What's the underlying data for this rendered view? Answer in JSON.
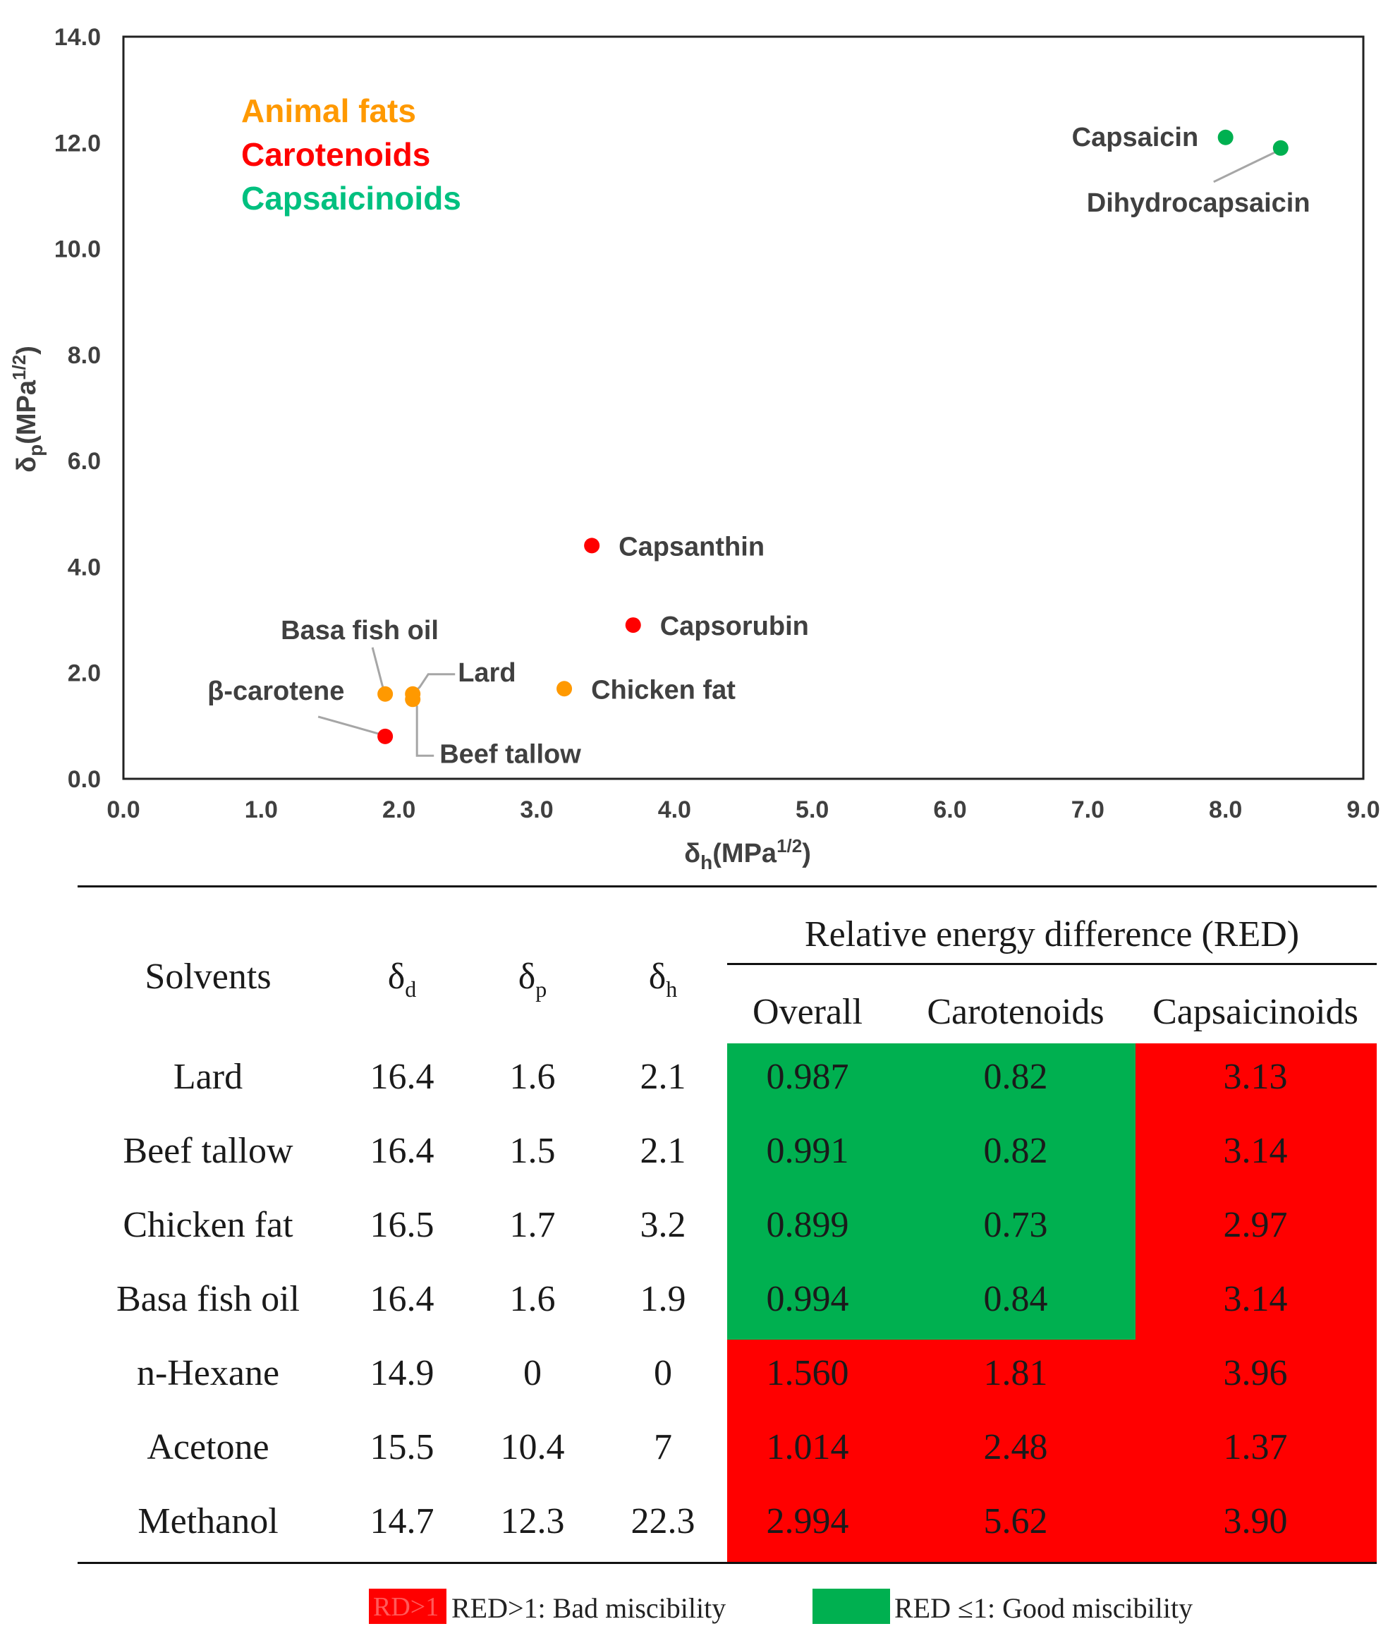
{
  "chart_data": {
    "type": "scatter",
    "xlabel": "δh(MPa1/2)",
    "ylabel": "δp(MPa1/2)",
    "xlim": [
      0,
      9
    ],
    "ylim": [
      0,
      14
    ],
    "x_ticks": [
      "0.0",
      "1.0",
      "2.0",
      "3.0",
      "4.0",
      "5.0",
      "6.0",
      "7.0",
      "8.0",
      "9.0"
    ],
    "y_ticks": [
      "0.0",
      "2.0",
      "4.0",
      "6.0",
      "8.0",
      "10.0",
      "12.0",
      "14.0"
    ],
    "legend": [
      {
        "name": "Animal fats",
        "color": "#ff9900"
      },
      {
        "name": "Carotenoids",
        "color": "#ff0000"
      },
      {
        "name": "Capsaicinoids",
        "color": "#00b050"
      }
    ],
    "points": [
      {
        "label": "Capsaicin",
        "group": "Capsaicinoids",
        "x": 8.0,
        "y": 12.1
      },
      {
        "label": "Dihydrocapsaicin",
        "group": "Capsaicinoids",
        "x": 8.4,
        "y": 11.9
      },
      {
        "label": "Capsanthin",
        "group": "Carotenoids",
        "x": 3.4,
        "y": 4.4
      },
      {
        "label": "Capsorubin",
        "group": "Carotenoids",
        "x": 3.7,
        "y": 2.9
      },
      {
        "label": "β-carotene",
        "group": "Carotenoids",
        "x": 1.9,
        "y": 0.8
      },
      {
        "label": "Basa fish oil",
        "group": "Animal fats",
        "x": 1.9,
        "y": 1.6
      },
      {
        "label": "Lard",
        "group": "Animal fats",
        "x": 2.1,
        "y": 1.6
      },
      {
        "label": "Beef tallow",
        "group": "Animal fats",
        "x": 2.1,
        "y": 1.5
      },
      {
        "label": "Chicken fat",
        "group": "Animal fats",
        "x": 3.2,
        "y": 1.7
      }
    ]
  },
  "table": {
    "col_solvents": "Solvents",
    "col_d": "δ",
    "col_d_sub": "d",
    "col_p": "δ",
    "col_p_sub": "p",
    "col_h": "δ",
    "col_h_sub": "h",
    "group_header": "Relative energy difference (RED)",
    "col_overall": "Overall",
    "col_carotenoids": "Carotenoids",
    "col_capsaicinoids": "Capsaicinoids",
    "rows": [
      {
        "solvent": "Lard",
        "d": "16.4",
        "p": "1.6",
        "h": "2.1",
        "overall": "0.987",
        "carotenoids": "0.82",
        "capsaicinoids": "3.13"
      },
      {
        "solvent": "Beef tallow",
        "d": "16.4",
        "p": "1.5",
        "h": "2.1",
        "overall": "0.991",
        "carotenoids": "0.82",
        "capsaicinoids": "3.14"
      },
      {
        "solvent": "Chicken fat",
        "d": "16.5",
        "p": "1.7",
        "h": "3.2",
        "overall": "0.899",
        "carotenoids": "0.73",
        "capsaicinoids": "2.97"
      },
      {
        "solvent": "Basa fish oil",
        "d": "16.4",
        "p": "1.6",
        "h": "1.9",
        "overall": "0.994",
        "carotenoids": "0.84",
        "capsaicinoids": "3.14"
      },
      {
        "solvent": "n-Hexane",
        "d": "14.9",
        "p": "0",
        "h": "0",
        "overall": "1.560",
        "carotenoids": "1.81",
        "capsaicinoids": "3.96"
      },
      {
        "solvent": "Acetone",
        "d": "15.5",
        "p": "10.4",
        "h": "7",
        "overall": "1.014",
        "carotenoids": "2.48",
        "capsaicinoids": "1.37"
      },
      {
        "solvent": "Methanol",
        "d": "14.7",
        "p": "12.3",
        "h": "22.3",
        "overall": "2.994",
        "carotenoids": "5.62",
        "capsaicinoids": "3.90"
      }
    ]
  },
  "legend_bottom": {
    "bad_swatch_text": "RD>1",
    "bad_label": "RED>1: Bad miscibility",
    "good_label": "RED ≤1: Good miscibility",
    "bad_color": "#ff0000",
    "good_color": "#00b050"
  }
}
